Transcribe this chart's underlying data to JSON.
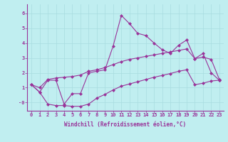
{
  "xlabel": "Windchill (Refroidissement éolien,°C)",
  "background_color": "#c0eef0",
  "line_color": "#993399",
  "xlim": [
    -0.5,
    23.5
  ],
  "ylim": [
    -0.55,
    6.6
  ],
  "xticks": [
    0,
    1,
    2,
    3,
    4,
    5,
    6,
    7,
    8,
    9,
    10,
    11,
    12,
    13,
    14,
    15,
    16,
    17,
    18,
    19,
    20,
    21,
    22,
    23
  ],
  "yticks": [
    0,
    1,
    2,
    3,
    4,
    5,
    6
  ],
  "ytick_labels": [
    "-0",
    "1",
    "2",
    "3",
    "4",
    "5",
    "6"
  ],
  "line1_x": [
    0,
    1,
    2,
    3,
    4,
    5,
    6,
    7,
    8,
    9,
    10,
    11,
    12,
    13,
    14,
    15,
    16,
    17,
    18,
    19,
    20,
    21,
    22,
    23
  ],
  "line1_y": [
    1.2,
    0.7,
    1.5,
    1.5,
    -0.1,
    0.6,
    0.6,
    2.0,
    2.1,
    2.2,
    3.8,
    5.85,
    5.3,
    4.65,
    4.5,
    4.0,
    3.55,
    3.3,
    3.85,
    4.2,
    2.95,
    3.3,
    2.0,
    1.5
  ],
  "line2_x": [
    0,
    1,
    2,
    3,
    4,
    5,
    6,
    7,
    8,
    9,
    10,
    11,
    12,
    13,
    14,
    15,
    16,
    17,
    18,
    19,
    20,
    21,
    22,
    23
  ],
  "line2_y": [
    1.2,
    1.0,
    1.55,
    1.65,
    1.7,
    1.75,
    1.85,
    2.1,
    2.2,
    2.35,
    2.55,
    2.75,
    2.9,
    3.0,
    3.1,
    3.2,
    3.3,
    3.4,
    3.5,
    3.6,
    2.95,
    3.05,
    2.9,
    1.55
  ],
  "line3_x": [
    0,
    1,
    2,
    3,
    4,
    5,
    6,
    7,
    8,
    9,
    10,
    11,
    12,
    13,
    14,
    15,
    16,
    17,
    18,
    19,
    20,
    21,
    22,
    23
  ],
  "line3_y": [
    1.2,
    0.7,
    -0.1,
    -0.2,
    -0.2,
    -0.25,
    -0.25,
    -0.1,
    0.3,
    0.55,
    0.85,
    1.1,
    1.25,
    1.4,
    1.55,
    1.7,
    1.82,
    1.95,
    2.1,
    2.2,
    1.2,
    1.3,
    1.45,
    1.5
  ],
  "grid_color": "#a8dce0",
  "marker": "D",
  "markersize": 2.0,
  "linewidth": 0.8,
  "tick_fontsize": 5.0,
  "label_fontsize": 5.5
}
